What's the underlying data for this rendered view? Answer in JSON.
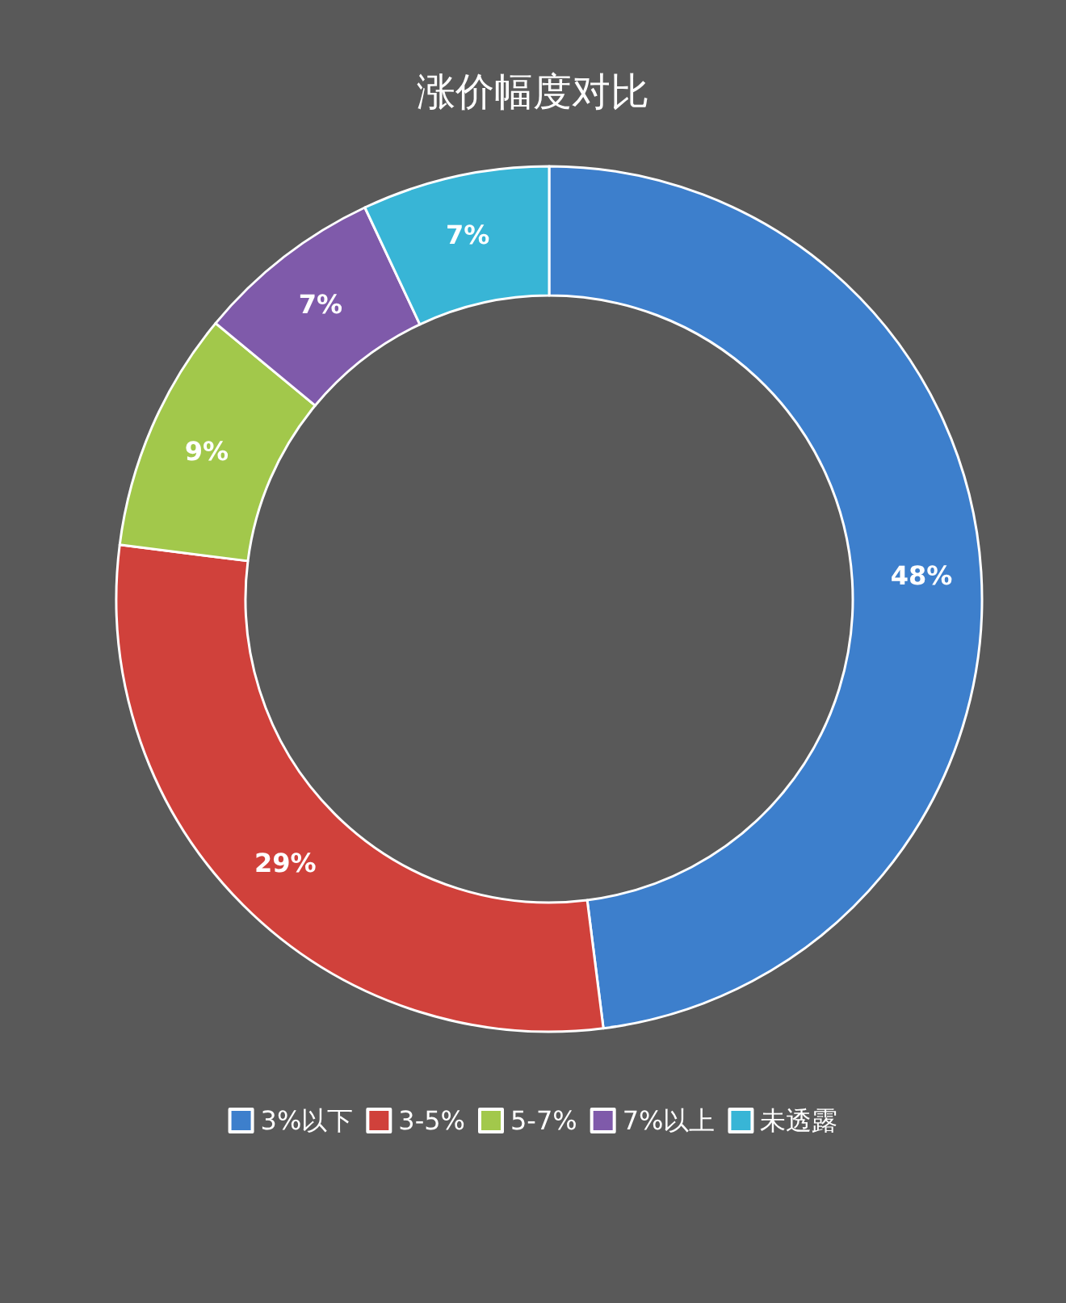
{
  "chart_data": {
    "type": "donut",
    "title": "涨价幅度对比",
    "categories": [
      "3%以下",
      "3-5%",
      "5-7%",
      "7%以上",
      "未透露"
    ],
    "values": [
      48,
      29,
      9,
      7,
      7
    ],
    "value_labels": [
      "48%",
      "29%",
      "9%",
      "7%",
      "7%"
    ],
    "colors": [
      "#3d7fcc",
      "#d0413b",
      "#a2c84b",
      "#7f5aaa",
      "#38b5d6"
    ],
    "legend": "bottom"
  }
}
